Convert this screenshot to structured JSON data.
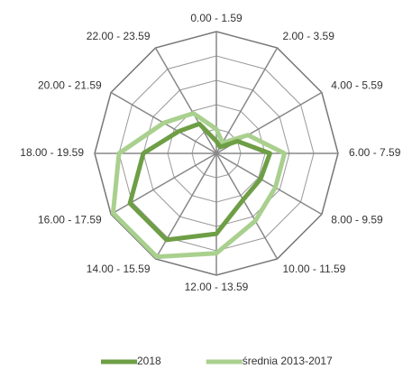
{
  "chart_data": {
    "type": "radar",
    "categories": [
      "0.00 - 1.59",
      "2.00 - 3.59",
      "4.00 - 5.59",
      "6.00 - 7.59",
      "8.00 - 9.59",
      "10.00 - 11.59",
      "12.00 - 13.59",
      "14.00 - 15.59",
      "16.00 - 17.59",
      "18.00 - 19.59",
      "20.00 - 21.59",
      "22.00 - 23.59"
    ],
    "series": [
      {
        "name": "2018",
        "color": "#6e9e45",
        "values": [
          0.5,
          0.3,
          1.0,
          2.2,
          2.1,
          2.2,
          3.3,
          4.1,
          4.1,
          3.0,
          1.8,
          1.4
        ]
      },
      {
        "name": "średnia 2013-2017",
        "color": "#a9d08e",
        "values": [
          1.0,
          0.5,
          1.5,
          2.8,
          2.8,
          3.2,
          4.1,
          4.9,
          4.9,
          4.0,
          2.5,
          1.9
        ]
      }
    ],
    "ylim": [
      0,
      5
    ],
    "yticks": [
      0,
      1,
      2,
      3,
      4,
      5
    ],
    "grid": true,
    "legend": "bottom"
  }
}
